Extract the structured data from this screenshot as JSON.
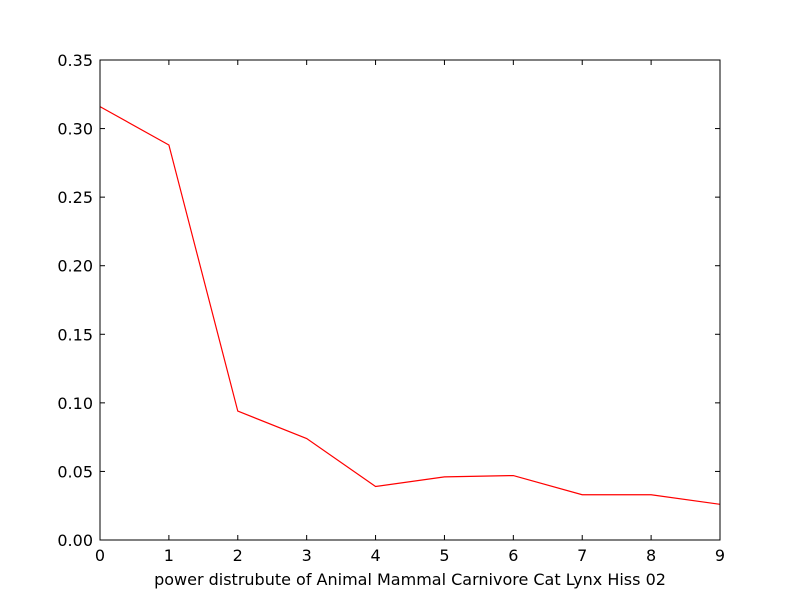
{
  "chart_data": {
    "type": "line",
    "title": "",
    "xlabel": "power distrubute of Animal Mammal Carnivore Cat Lynx Hiss 02",
    "ylabel": "",
    "xlim": [
      0,
      9
    ],
    "ylim": [
      0,
      0.35
    ],
    "x_ticks": [
      "0",
      "1",
      "2",
      "3",
      "4",
      "5",
      "6",
      "7",
      "8",
      "9"
    ],
    "y_ticks": [
      "0.00",
      "0.05",
      "0.10",
      "0.15",
      "0.20",
      "0.25",
      "0.30",
      "0.35"
    ],
    "grid": false,
    "legend": "none",
    "series": [
      {
        "color": "#ff0000",
        "x": [
          0,
          1,
          2,
          3,
          4,
          5,
          6,
          7,
          8,
          9
        ],
        "y": [
          0.316,
          0.288,
          0.094,
          0.074,
          0.039,
          0.046,
          0.047,
          0.033,
          0.033,
          0.026
        ]
      }
    ]
  }
}
